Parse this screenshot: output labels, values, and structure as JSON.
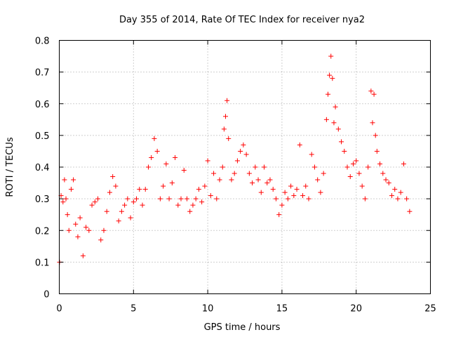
{
  "chart_data": {
    "type": "scatter",
    "title": "Day 355 of 2014, Rate Of TEC Index for receiver nya2",
    "xlabel": "GPS time / hours",
    "ylabel": "ROTI / TECUs",
    "xlim": [
      0,
      25
    ],
    "ylim": [
      0,
      0.8
    ],
    "xticks": [
      0,
      5,
      10,
      15,
      20,
      25
    ],
    "yticks": [
      0,
      0.1,
      0.2,
      0.3,
      0.4,
      0.5,
      0.6,
      0.7,
      0.8
    ],
    "grid": true,
    "marker": "+",
    "color": "#ff0000",
    "series": [
      {
        "x": [
          0.02,
          0.12,
          0.25,
          0.35,
          0.45,
          0.55,
          0.65,
          0.8,
          0.95,
          1.1,
          1.25,
          1.4,
          1.6,
          1.8,
          2.0,
          2.2,
          2.4,
          2.6,
          2.8,
          3.0,
          3.2,
          3.4,
          3.6,
          3.8,
          4.0,
          4.2,
          4.4,
          4.6,
          4.8,
          5.0,
          5.2,
          5.4,
          5.6,
          5.8,
          6.0,
          6.2,
          6.4,
          6.6,
          6.8,
          7.0,
          7.2,
          7.4,
          7.6,
          7.8,
          8.0,
          8.2,
          8.4,
          8.6,
          8.8,
          9.0,
          9.2,
          9.4,
          9.6,
          9.8,
          10.0,
          10.2,
          10.4,
          10.6,
          10.8,
          11.0,
          11.1,
          11.2,
          11.3,
          11.4,
          11.6,
          11.8,
          12.0,
          12.2,
          12.4,
          12.6,
          12.8,
          13.0,
          13.2,
          13.4,
          13.6,
          13.8,
          14.0,
          14.2,
          14.4,
          14.6,
          14.8,
          15.0,
          15.2,
          15.4,
          15.6,
          15.8,
          16.0,
          16.2,
          16.4,
          16.6,
          16.8,
          17.0,
          17.2,
          17.4,
          17.6,
          17.8,
          18.0,
          18.1,
          18.2,
          18.3,
          18.4,
          18.5,
          18.6,
          18.8,
          19.0,
          19.2,
          19.4,
          19.6,
          19.8,
          20.0,
          20.2,
          20.4,
          20.6,
          20.8,
          21.0,
          21.1,
          21.2,
          21.3,
          21.4,
          21.6,
          21.8,
          22.0,
          22.2,
          22.4,
          22.6,
          22.8,
          23.0,
          23.2,
          23.4,
          23.6
        ],
        "y": [
          0.1,
          0.31,
          0.29,
          0.36,
          0.3,
          0.25,
          0.2,
          0.33,
          0.36,
          0.22,
          0.18,
          0.24,
          0.12,
          0.21,
          0.2,
          0.28,
          0.29,
          0.3,
          0.17,
          0.2,
          0.26,
          0.32,
          0.37,
          0.34,
          0.23,
          0.26,
          0.28,
          0.3,
          0.24,
          0.29,
          0.3,
          0.33,
          0.28,
          0.33,
          0.4,
          0.43,
          0.49,
          0.45,
          0.3,
          0.34,
          0.41,
          0.3,
          0.35,
          0.43,
          0.28,
          0.3,
          0.39,
          0.3,
          0.26,
          0.28,
          0.3,
          0.33,
          0.29,
          0.34,
          0.42,
          0.31,
          0.38,
          0.3,
          0.36,
          0.4,
          0.52,
          0.56,
          0.61,
          0.49,
          0.36,
          0.38,
          0.42,
          0.45,
          0.47,
          0.44,
          0.38,
          0.35,
          0.4,
          0.36,
          0.32,
          0.4,
          0.35,
          0.36,
          0.33,
          0.3,
          0.25,
          0.28,
          0.32,
          0.3,
          0.34,
          0.31,
          0.33,
          0.47,
          0.31,
          0.34,
          0.3,
          0.44,
          0.4,
          0.36,
          0.32,
          0.38,
          0.55,
          0.63,
          0.69,
          0.75,
          0.68,
          0.54,
          0.59,
          0.52,
          0.48,
          0.45,
          0.4,
          0.37,
          0.41,
          0.42,
          0.38,
          0.34,
          0.3,
          0.4,
          0.64,
          0.54,
          0.63,
          0.5,
          0.45,
          0.41,
          0.38,
          0.36,
          0.35,
          0.31,
          0.33,
          0.3,
          0.32,
          0.41,
          0.3,
          0.26
        ]
      }
    ]
  }
}
